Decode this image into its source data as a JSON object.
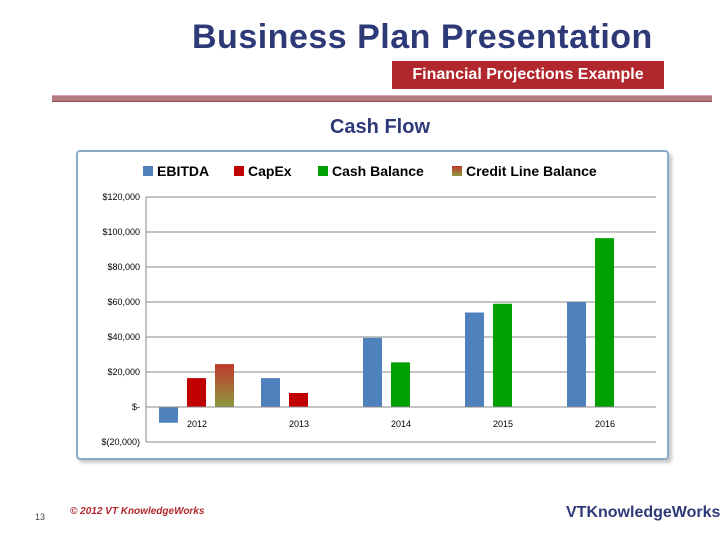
{
  "header": {
    "title": "Business Plan Presentation",
    "subtitle": "Financial Projections Example"
  },
  "footer": {
    "copyright": "© 2012 VT KnowledgeWorks",
    "page_number": "13",
    "logo_text": "VTKnowledgeWorks"
  },
  "colors": {
    "ebitda": "#4f81bd",
    "capex": "#c00000",
    "cash_balance": "#00a000",
    "credit_line_top": "#c0392b",
    "credit_line_bottom": "#8c9a40",
    "title": "#2e3a78",
    "accent": "#b2272d"
  },
  "chart_data": {
    "type": "bar",
    "title": "Cash Flow",
    "categories": [
      "2012",
      "2013",
      "2014",
      "2015",
      "2016"
    ],
    "series": [
      {
        "name": "EBITDA",
        "values": [
          -9000,
          16500,
          39500,
          54000,
          60000
        ]
      },
      {
        "name": "CapEx",
        "values": [
          16500,
          8000,
          null,
          null,
          null
        ]
      },
      {
        "name": "Cash Balance",
        "values": [
          null,
          null,
          25500,
          59000,
          96500
        ]
      },
      {
        "name": "Credit Line Balance",
        "values": [
          24500,
          null,
          null,
          null,
          null
        ]
      }
    ],
    "ylim": [
      -20000,
      120000
    ],
    "yticks": [
      -20000,
      0,
      20000,
      40000,
      60000,
      80000,
      100000,
      120000
    ],
    "ytick_labels": [
      "$(20,000)",
      "$-",
      "$20,000",
      "$40,000",
      "$60,000",
      "$80,000",
      "$100,000",
      "$120,000"
    ],
    "legend_position": "top",
    "grid": true
  }
}
